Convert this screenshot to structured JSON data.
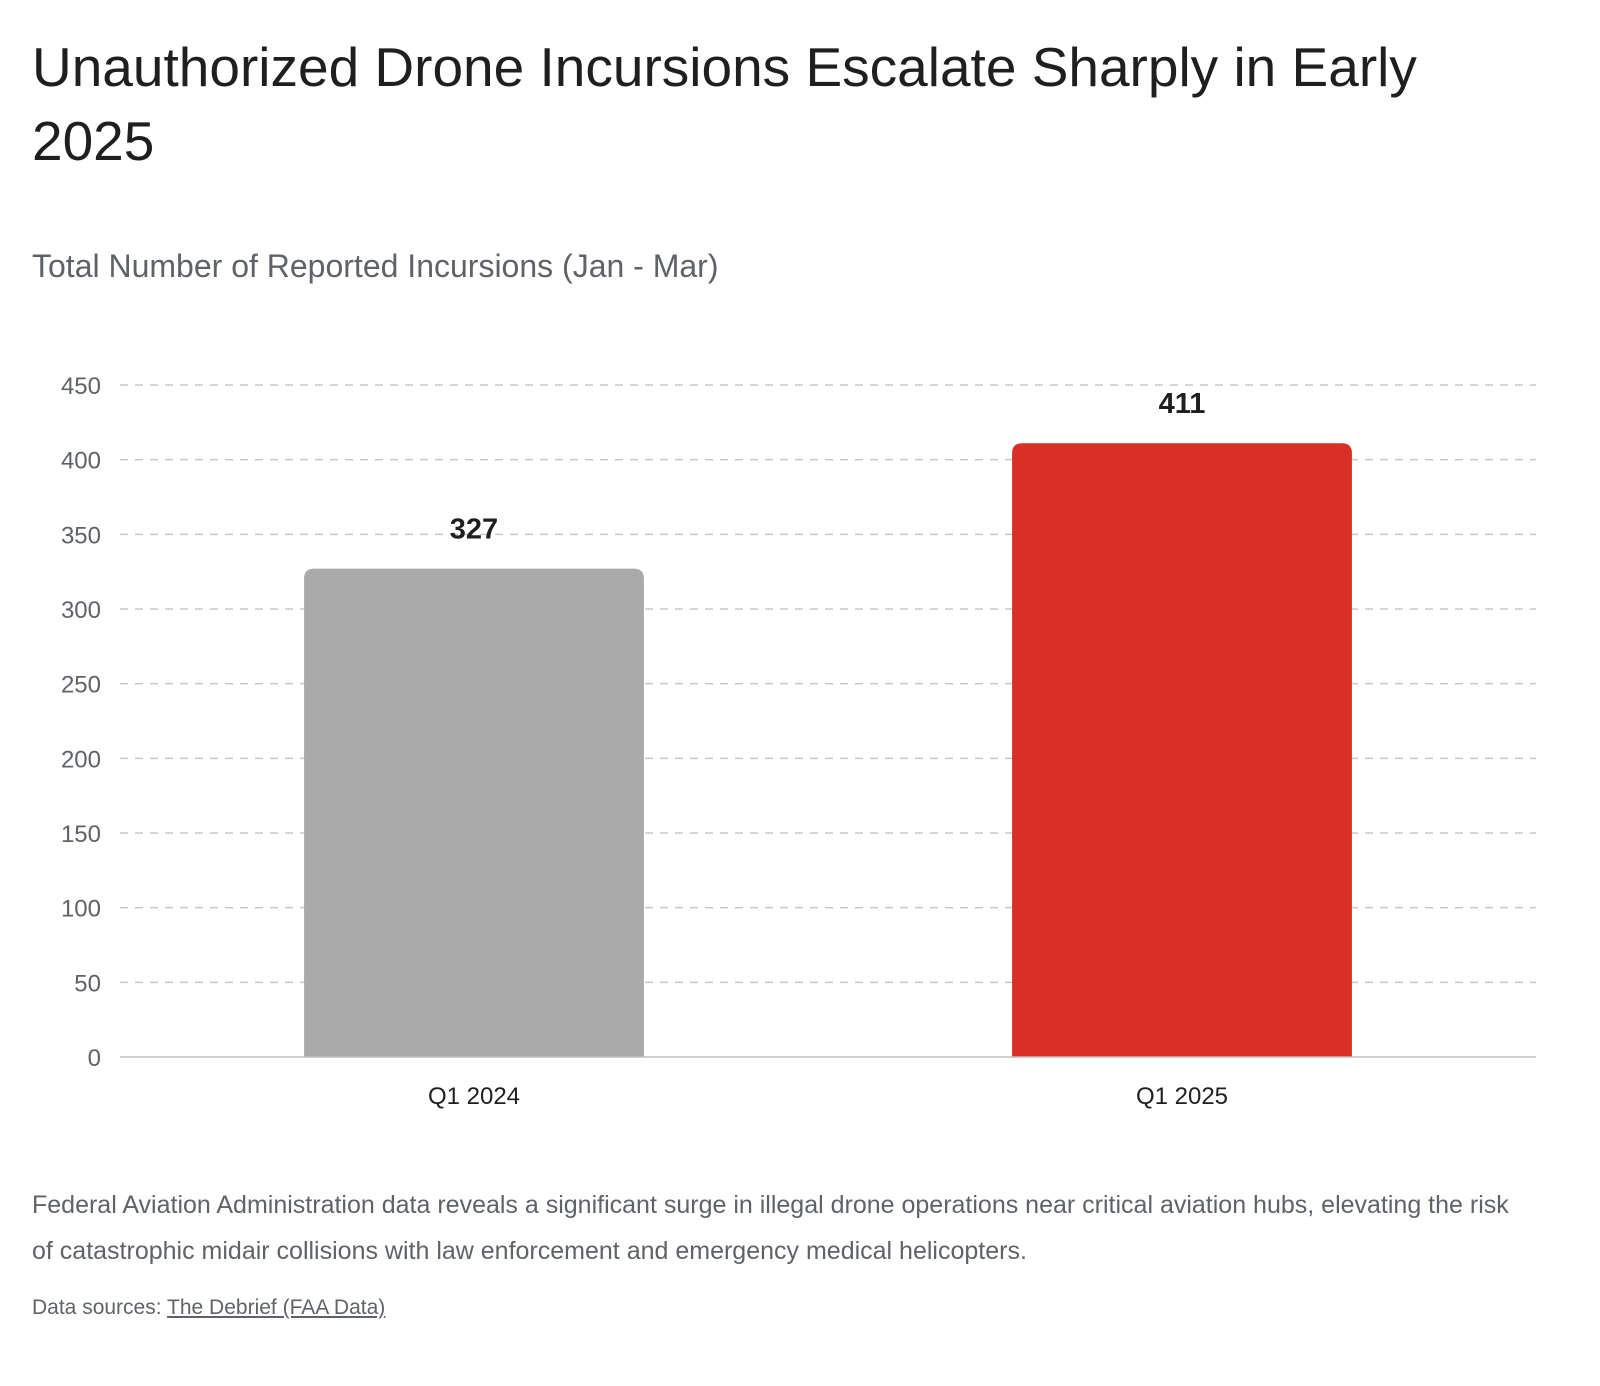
{
  "title": "Unauthorized Drone Incursions Escalate Sharply in Early 2025",
  "subtitle": "Total Number of Reported Incursions (Jan - Mar)",
  "description": "Federal Aviation Administration data reveals a significant surge in illegal drone operations near critical aviation hubs, elevating the risk of catastrophic midair collisions with law enforcement and emergency medical helicopters.",
  "source": {
    "prefix": "Data sources:",
    "link_text": "The Debrief (FAA Data)"
  },
  "chart_data": {
    "type": "bar",
    "categories": [
      "Q1 2024",
      "Q1 2025"
    ],
    "values": [
      327,
      411
    ],
    "colors": [
      "#aaaaaa",
      "#d93025"
    ],
    "data_labels": [
      "327",
      "411"
    ],
    "ylim": [
      0,
      450
    ],
    "yticks": [
      0,
      50,
      100,
      150,
      200,
      250,
      300,
      350,
      400,
      450
    ],
    "grid": true,
    "grid_style": "dashed",
    "legend": "none"
  }
}
